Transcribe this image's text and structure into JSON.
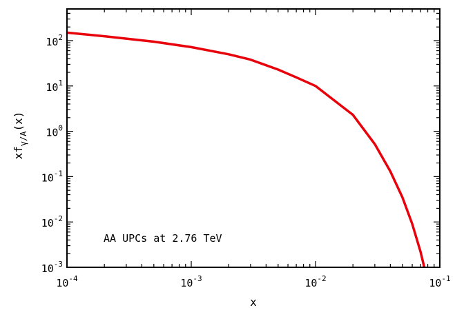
{
  "chart_data": {
    "type": "line",
    "xscale": "log",
    "yscale": "log",
    "xlim": [
      0.0001,
      0.1
    ],
    "ylim": [
      0.001,
      500
    ],
    "xlabel": "x",
    "ylabel": {
      "base": "xf",
      "subscript": "γ/A",
      "suffix": "(x)"
    },
    "annotation": "AA UPCs at 2.76 TeV",
    "grid": false,
    "legend": "none",
    "x_ticks": [
      {
        "value": 0.0001,
        "base": "10",
        "exp": "-4"
      },
      {
        "value": 0.001,
        "base": "10",
        "exp": "-3"
      },
      {
        "value": 0.01,
        "base": "10",
        "exp": "-2"
      },
      {
        "value": 0.1,
        "base": "10",
        "exp": "-1"
      }
    ],
    "y_ticks": [
      {
        "value": 0.001,
        "base": "10",
        "exp": "-3"
      },
      {
        "value": 0.01,
        "base": "10",
        "exp": "-2"
      },
      {
        "value": 0.1,
        "base": "10",
        "exp": "-1"
      },
      {
        "value": 1,
        "base": "10",
        "exp": "0"
      },
      {
        "value": 10,
        "base": "10",
        "exp": "1"
      },
      {
        "value": 100,
        "base": "10",
        "exp": "2"
      }
    ],
    "series": [
      {
        "color": "#e8000b",
        "x": [
          0.0001,
          0.0002,
          0.0005,
          0.001,
          0.002,
          0.003,
          0.005,
          0.007,
          0.01,
          0.02,
          0.03,
          0.04,
          0.05,
          0.06,
          0.07,
          0.075
        ],
        "y": [
          150,
          125,
          95,
          72,
          50,
          38,
          23,
          15.5,
          10,
          2.3,
          0.52,
          0.13,
          0.035,
          0.009,
          0.0022,
          0.001
        ]
      }
    ]
  }
}
